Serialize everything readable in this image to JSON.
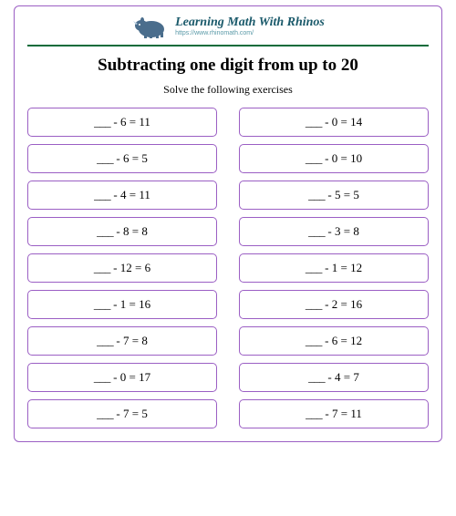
{
  "header": {
    "brand_title": "Learning Math With Rhinos",
    "brand_url": "https://www.rhinomath.com/",
    "logo_color": "#4a6d8c",
    "logo_accent": "#b9cfe0"
  },
  "divider_color": "#0a6b3a",
  "border_color": "#9b5fc4",
  "title": "Subtracting one digit from up to 20",
  "subtitle": "Solve the following exercises",
  "blank": "___",
  "problems": {
    "left": [
      {
        "sub": 6,
        "eq": 11
      },
      {
        "sub": 6,
        "eq": 5
      },
      {
        "sub": 4,
        "eq": 11
      },
      {
        "sub": 8,
        "eq": 8
      },
      {
        "sub": 12,
        "eq": 6
      },
      {
        "sub": 1,
        "eq": 16
      },
      {
        "sub": 7,
        "eq": 8
      },
      {
        "sub": 0,
        "eq": 17
      },
      {
        "sub": 7,
        "eq": 5
      }
    ],
    "right": [
      {
        "sub": 0,
        "eq": 14
      },
      {
        "sub": 0,
        "eq": 10
      },
      {
        "sub": 5,
        "eq": 5
      },
      {
        "sub": 3,
        "eq": 8
      },
      {
        "sub": 1,
        "eq": 12
      },
      {
        "sub": 2,
        "eq": 16
      },
      {
        "sub": 6,
        "eq": 12
      },
      {
        "sub": 4,
        "eq": 7
      },
      {
        "sub": 7,
        "eq": 11
      }
    ]
  },
  "text_color": "#000000",
  "background_color": "#ffffff",
  "problem_fontsize": 13,
  "title_fontsize": 19,
  "subtitle_fontsize": 12
}
